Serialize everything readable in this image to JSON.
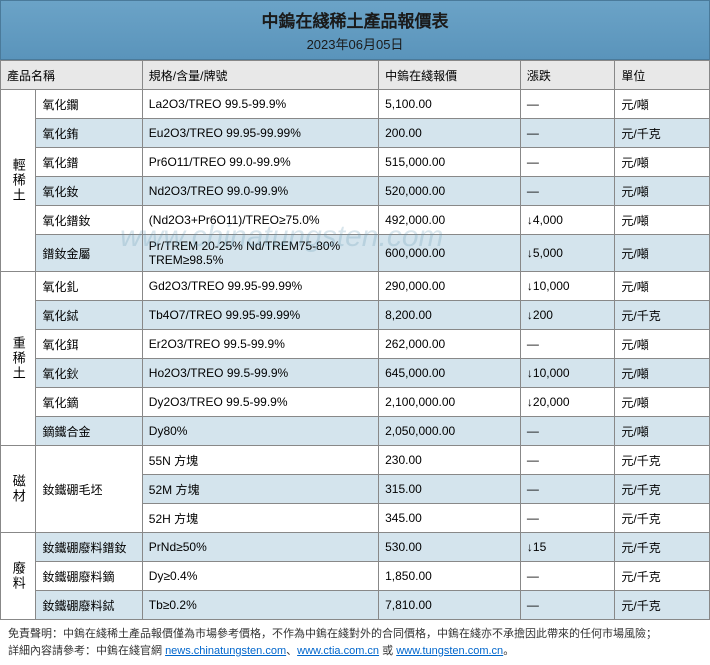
{
  "title": "中鎢在綫稀土產品報價表",
  "date": "2023年06月05日",
  "columns": [
    "產品名稱",
    "規格/含量/牌號",
    "中鎢在綫報價",
    "漲跌",
    "單位"
  ],
  "watermark": "www.chinatungsten.com",
  "colors": {
    "header_bg_top": "#6ba3c7",
    "header_bg_bottom": "#5a94bb",
    "row_even": "#d4e4ed",
    "row_odd": "#ffffff",
    "border": "#888888"
  },
  "categories": [
    {
      "name": "輕稀土",
      "rows": [
        {
          "product": "氧化鑭",
          "spec": "La2O3/TREO 99.5-99.9%",
          "price": "5,100.00",
          "change": "—",
          "unit": "元/噸"
        },
        {
          "product": "氧化銪",
          "spec": "Eu2O3/TREO 99.95-99.99%",
          "price": "200.00",
          "change": "—",
          "unit": "元/千克"
        },
        {
          "product": "氧化鐠",
          "spec": "Pr6O11/TREO 99.0-99.9%",
          "price": "515,000.00",
          "change": "—",
          "unit": "元/噸"
        },
        {
          "product": "氧化釹",
          "spec": "Nd2O3/TREO 99.0-99.9%",
          "price": "520,000.00",
          "change": "—",
          "unit": "元/噸"
        },
        {
          "product": "氧化鐠釹",
          "spec": "(Nd2O3+Pr6O11)/TREO≥75.0%",
          "price": "492,000.00",
          "change": "↓4,000",
          "unit": "元/噸"
        },
        {
          "product": "鐠釹金屬",
          "spec": "Pr/TREM 20-25% Nd/TREM75-80% TREM≥98.5%",
          "price": "600,000.00",
          "change": "↓5,000",
          "unit": "元/噸"
        }
      ]
    },
    {
      "name": "重稀土",
      "rows": [
        {
          "product": "氧化釓",
          "spec": "Gd2O3/TREO 99.95-99.99%",
          "price": "290,000.00",
          "change": "↓10,000",
          "unit": "元/噸"
        },
        {
          "product": "氧化鋱",
          "spec": "Tb4O7/TREO 99.95-99.99%",
          "price": "8,200.00",
          "change": "↓200",
          "unit": "元/千克"
        },
        {
          "product": "氧化鉺",
          "spec": "Er2O3/TREO 99.5-99.9%",
          "price": "262,000.00",
          "change": "—",
          "unit": "元/噸"
        },
        {
          "product": "氧化鈥",
          "spec": "Ho2O3/TREO 99.5-99.9%",
          "price": "645,000.00",
          "change": "↓10,000",
          "unit": "元/噸"
        },
        {
          "product": "氧化鏑",
          "spec": "Dy2O3/TREO 99.5-99.9%",
          "price": "2,100,000.00",
          "change": "↓20,000",
          "unit": "元/噸"
        },
        {
          "product": "鏑鐵合金",
          "spec": "Dy80%",
          "price": "2,050,000.00",
          "change": "—",
          "unit": "元/噸"
        }
      ]
    },
    {
      "name": "磁材",
      "rows": [
        {
          "product": "釹鐵硼毛坯",
          "spec": "55N 方塊",
          "price": "230.00",
          "change": "—",
          "unit": "元/千克",
          "rowspan": 3
        },
        {
          "product": "",
          "spec": "52M 方塊",
          "price": "315.00",
          "change": "—",
          "unit": "元/千克"
        },
        {
          "product": "",
          "spec": "52H 方塊",
          "price": "345.00",
          "change": "—",
          "unit": "元/千克"
        }
      ]
    },
    {
      "name": "廢料",
      "rows": [
        {
          "product": "釹鐵硼廢料鐠釹",
          "spec": "PrNd≥50%",
          "price": "530.00",
          "change": "↓15",
          "unit": "元/千克"
        },
        {
          "product": "釹鐵硼廢料鏑",
          "spec": "Dy≥0.4%",
          "price": "1,850.00",
          "change": "—",
          "unit": "元/千克"
        },
        {
          "product": "釹鐵硼廢料鋱",
          "spec": "Tb≥0.2%",
          "price": "7,810.00",
          "change": "—",
          "unit": "元/千克"
        }
      ]
    }
  ],
  "footer": {
    "disclaimer_label": "免責聲明：",
    "disclaimer_text": "中鎢在綫稀土產品報價僅為市場參考價格，不作為中鎢在綫對外的合同價格，中鎢在綫亦不承擔因此帶來的任何市場風險；",
    "detail_label": "詳細內容請參考：",
    "detail_prefix": "中鎢在綫官網 ",
    "link1": "news.chinatungsten.com",
    "link2": "www.ctia.com.cn",
    "link3": "www.tungsten.com.cn",
    "sep1": "、",
    "sep2": " 或 ",
    "period": "。"
  }
}
